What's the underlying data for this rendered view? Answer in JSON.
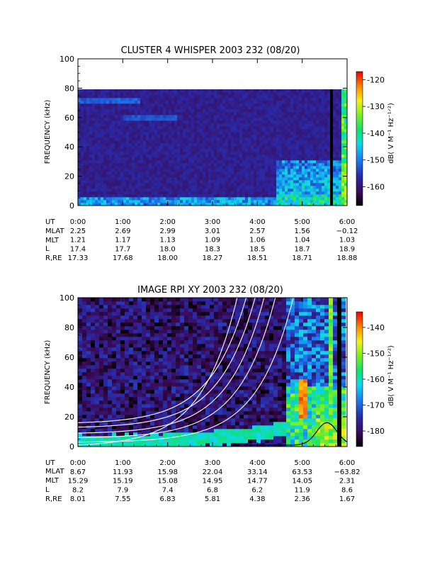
{
  "chart_data": [
    {
      "type": "heatmap",
      "title": "CLUSTER 4 WHISPER 2003 232 (08/20)",
      "ylabel": "FREQUENCY (kHz)",
      "colorbar_label": "dB( V M⁻¹ Hz⁻¹ᐟ²)",
      "ylim": [
        0,
        100
      ],
      "xlim": [
        "0:00",
        "6:00"
      ],
      "data_top_khz": 80,
      "y_ticks": [
        "0",
        "20",
        "40",
        "60",
        "80",
        "100"
      ],
      "colorbar_range": [
        -167,
        -117
      ],
      "colorbar_ticks": [
        "-120",
        "-130",
        "-140",
        "-150",
        "-160"
      ],
      "ephemeris": {
        "labels": [
          "UT",
          "MLAT",
          "MLT",
          "L",
          "R,RE"
        ],
        "times": [
          "0:00",
          "1:00",
          "2:00",
          "3:00",
          "4:00",
          "5:00",
          "6:00"
        ],
        "rows": [
          [
            "2.25",
            "2.69",
            "2.99",
            "3.01",
            "2.57",
            "1.56",
            "−0.12"
          ],
          [
            "1.21",
            "1.17",
            "1.13",
            "1.09",
            "1.06",
            "1.04",
            "1.03"
          ],
          [
            "17.4",
            "17.7",
            "18.0",
            "18.3",
            "18.5",
            "18.7",
            "18.9"
          ],
          [
            "17.33",
            "17.68",
            "18.00",
            "18.27",
            "18.51",
            "18.71",
            "18.88"
          ]
        ]
      },
      "features": {
        "background_level_db": -158,
        "band_low_khz": [
          0,
          6
        ],
        "band_low_level_db": -150,
        "enhancement_start_hours": 4.4,
        "enhancement_level_db": -145,
        "data_gap_hours": 5.65,
        "emission_near_hours": 5.95,
        "emission_level_db": -135
      }
    },
    {
      "type": "heatmap",
      "title": "IMAGE RPI XY 2003 232 (08/20)",
      "ylabel": "FREQUENCY (kHz)",
      "colorbar_label": "dB( V M⁻¹ Hz⁻¹ᐟ²)",
      "ylim": [
        0,
        100
      ],
      "xlim": [
        "0:00",
        "6:00"
      ],
      "y_ticks": [
        "0",
        "20",
        "40",
        "60",
        "80",
        "100"
      ],
      "colorbar_range": [
        -186,
        -134
      ],
      "colorbar_ticks": [
        "-140",
        "-150",
        "-160",
        "-170",
        "-180"
      ],
      "ephemeris": {
        "labels": [
          "UT",
          "MLAT",
          "MLT",
          "L",
          "R,RE"
        ],
        "times": [
          "0:00",
          "1:00",
          "2:00",
          "3:00",
          "4:00",
          "5:00",
          "6:00"
        ],
        "rows": [
          [
            "8.67",
            "11.93",
            "15.98",
            "22.04",
            "33.14",
            "63.53",
            "−63.82"
          ],
          [
            "15.29",
            "15.19",
            "15.08",
            "14.95",
            "14.77",
            "14.05",
            "2.31"
          ],
          [
            "8.2",
            "7.9",
            "7.4",
            "6.8",
            "6.2",
            "11.9",
            "8.6"
          ],
          [
            "8.01",
            "7.55",
            "6.83",
            "5.81",
            "4.38",
            "2.36",
            "1.67"
          ]
        ]
      },
      "features": {
        "background_level_db": -178,
        "emission_band_level_db": -160,
        "enhancement_start_hours": 4.6,
        "enhancement_level_db": -158,
        "emission_peak_hours": 5.0,
        "emission_peak_khz": 45,
        "emission_peak_level_db": -140,
        "data_gap_hours": [
          5.75,
          5.85
        ],
        "white_curves_khz_at_0h": [
          3,
          6,
          9,
          13,
          16
        ],
        "white_curves_rise_hours": [
          4.8,
          4.4,
          4.15,
          3.95,
          3.75,
          3.55
        ],
        "black_curve_peak_hours": 5.55,
        "black_curve_peak_khz": 16
      }
    }
  ]
}
